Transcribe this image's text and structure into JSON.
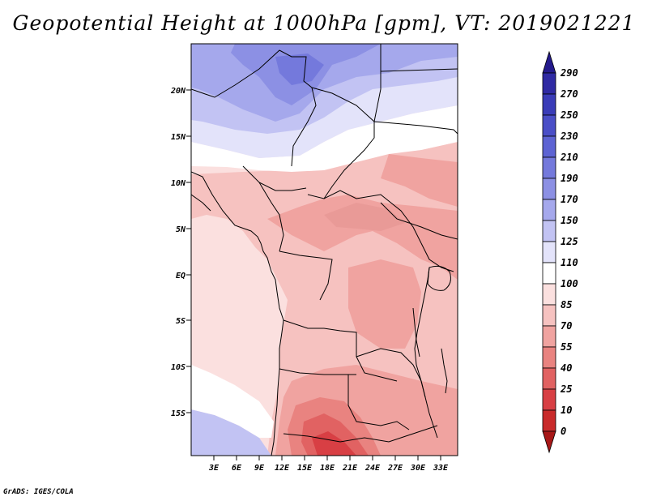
{
  "title": "Geopotential Height at 1000hPa [gpm], VT: 2019021221",
  "credit": "GrADS: IGES/COLA",
  "lat_labels": [
    "20N",
    "15N",
    "10N",
    "5N",
    "EQ",
    "5S",
    "10S",
    "15S"
  ],
  "lon_labels": [
    "3E",
    "6E",
    "9E",
    "12E",
    "15E",
    "18E",
    "21E",
    "24E",
    "27E",
    "30E",
    "33E"
  ],
  "colorbar": {
    "levels": [
      "290",
      "270",
      "250",
      "230",
      "210",
      "190",
      "170",
      "150",
      "125",
      "110",
      "100",
      "85",
      "70",
      "55",
      "40",
      "25",
      "10",
      "0"
    ],
    "colors": [
      "#241a8c",
      "#2f2aa3",
      "#3a3cb8",
      "#4a4ec7",
      "#5d63d3",
      "#7479dc",
      "#8c90e4",
      "#a5a8ec",
      "#c2c3f3",
      "#e3e3fa",
      "#ffffff",
      "#fbe0df",
      "#f6c2c0",
      "#f0a3a0",
      "#e98380",
      "#e16262",
      "#d83f44",
      "#c92a2a",
      "#a81818"
    ]
  },
  "colors": {
    "ocean_pink": "#fbe0df",
    "north_blue": "#a5a8ec",
    "north_violet": "#8c90e4",
    "south_blue": "#c2c3f3",
    "white_band": "#ffffff",
    "boundaries": "#000000"
  }
}
